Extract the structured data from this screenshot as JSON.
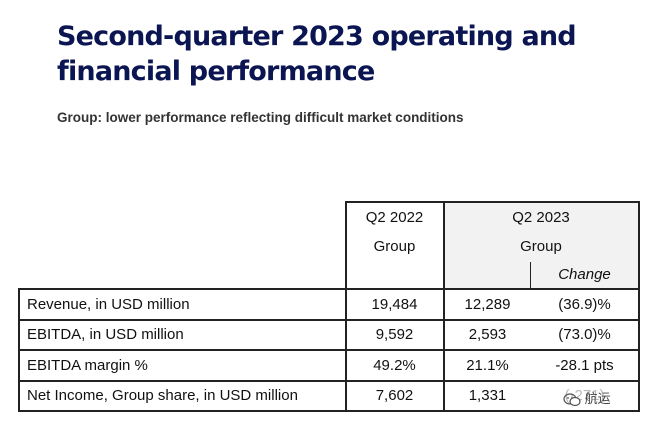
{
  "title": "Second-quarter 2023 operating and financial performance",
  "subtitle": "Group: lower performance reflecting difficult market conditions",
  "table": {
    "header": {
      "col1_line1": "Q2 2022",
      "col1_line2": "Group",
      "col2_line1": "Q2 2023",
      "col2_line2": "Group",
      "change_label": "Change"
    },
    "rows": [
      {
        "label": "Revenue, in USD million",
        "q2_2022": "19,484",
        "q2_2023": "12,289",
        "change": "(36.9)%"
      },
      {
        "label": "EBITDA, in USD million",
        "q2_2022": "9,592",
        "q2_2023": "2,593",
        "change": "(73.0)%"
      },
      {
        "label": "EBITDA margin %",
        "q2_2022": "49.2%",
        "q2_2023": "21.1%",
        "change": "-28.1 pts"
      },
      {
        "label": "Net Income, Group share, in USD million",
        "q2_2022": "7,602",
        "q2_2023": "1,331",
        "change": "(·271)"
      }
    ]
  },
  "watermark": {
    "text": "航运",
    "icon": "wechat-icon"
  }
}
